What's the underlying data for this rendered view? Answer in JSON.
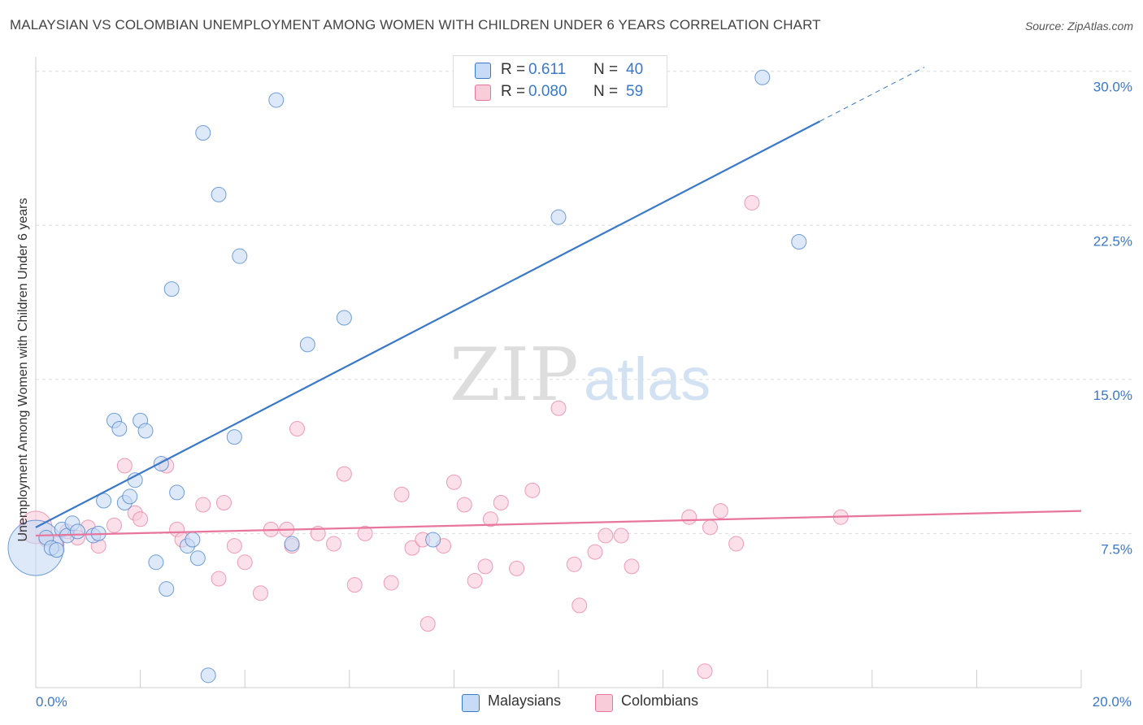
{
  "header": {
    "title": "MALAYSIAN VS COLOMBIAN UNEMPLOYMENT AMONG WOMEN WITH CHILDREN UNDER 6 YEARS CORRELATION CHART",
    "source": "Source: ZipAtlas.com"
  },
  "watermark": {
    "zip": "ZIP",
    "atlas": "atlas"
  },
  "legend": {
    "r_label": "R =",
    "n_label": "N =",
    "malaysians": {
      "r": "0.611",
      "n": "40"
    },
    "colombians": {
      "r": "0.080",
      "n": "59"
    }
  },
  "bottom_legend": {
    "malaysians": "Malaysians",
    "colombians": "Colombians"
  },
  "chart_data": {
    "type": "scatter",
    "title": "MALAYSIAN VS COLOMBIAN UNEMPLOYMENT AMONG WOMEN WITH CHILDREN UNDER 6 YEARS CORRELATION CHART",
    "xlabel": "",
    "ylabel": "Unemployment Among Women with Children Under 6 years",
    "xlim": [
      0,
      20
    ],
    "ylim": [
      0,
      30.7
    ],
    "x_tick_labels": [
      {
        "value": 0,
        "label": "0.0%"
      },
      {
        "value": 20,
        "label": "20.0%"
      }
    ],
    "y_tick_labels": [
      {
        "value": 7.5,
        "label": "7.5%"
      },
      {
        "value": 15,
        "label": "15.0%"
      },
      {
        "value": 22.5,
        "label": "22.5%"
      },
      {
        "value": 30,
        "label": "30.0%"
      }
    ],
    "grid": true,
    "legend_position": "top-center",
    "colors": {
      "malaysians": "#3a78c9",
      "colombians": "#e8769c",
      "malaysians_fill": "#c6dbf5",
      "colombians_fill": "#f9ccda"
    },
    "series": [
      {
        "name": "Malaysians",
        "trend": {
          "x0": 0,
          "y0": 7.8,
          "x1": 17,
          "y1": 30.2,
          "solid_until_x": 15
        },
        "points": [
          [
            0.0,
            6.8,
            34
          ],
          [
            0.2,
            7.3,
            9
          ],
          [
            0.3,
            6.8,
            9
          ],
          [
            0.4,
            6.7,
            9
          ],
          [
            0.5,
            7.7,
            9
          ],
          [
            0.6,
            7.4,
            9
          ],
          [
            0.7,
            8.0,
            9
          ],
          [
            0.8,
            7.6,
            9
          ],
          [
            1.1,
            7.4,
            9
          ],
          [
            1.2,
            7.5,
            9
          ],
          [
            1.3,
            9.1,
            9
          ],
          [
            1.5,
            13.0,
            9
          ],
          [
            1.6,
            12.6,
            9
          ],
          [
            1.7,
            9.0,
            9
          ],
          [
            1.8,
            9.3,
            9
          ],
          [
            1.9,
            10.1,
            9
          ],
          [
            2.0,
            13.0,
            9
          ],
          [
            2.1,
            12.5,
            9
          ],
          [
            2.3,
            6.1,
            9
          ],
          [
            2.4,
            10.9,
            9
          ],
          [
            2.5,
            4.8,
            9
          ],
          [
            2.6,
            19.4,
            9
          ],
          [
            2.7,
            9.5,
            9
          ],
          [
            2.9,
            6.9,
            9
          ],
          [
            3.0,
            7.2,
            9
          ],
          [
            3.1,
            6.3,
            9
          ],
          [
            3.2,
            27.0,
            9
          ],
          [
            3.3,
            0.6,
            9
          ],
          [
            3.5,
            24.0,
            9
          ],
          [
            3.8,
            12.2,
            9
          ],
          [
            3.9,
            21.0,
            9
          ],
          [
            4.6,
            28.6,
            9
          ],
          [
            4.9,
            7.0,
            9
          ],
          [
            5.2,
            16.7,
            9
          ],
          [
            5.9,
            18.0,
            9
          ],
          [
            7.6,
            7.2,
            9
          ],
          [
            10.0,
            22.9,
            9
          ],
          [
            13.9,
            29.7,
            9
          ],
          [
            14.6,
            21.7,
            9
          ]
        ]
      },
      {
        "name": "Colombians",
        "trend": {
          "x0": 0,
          "y0": 7.4,
          "x1": 20,
          "y1": 8.6,
          "solid_until_x": 20
        },
        "points": [
          [
            0.0,
            7.8,
            20
          ],
          [
            0.2,
            7.2,
            9
          ],
          [
            0.4,
            7.0,
            9
          ],
          [
            0.6,
            7.6,
            9
          ],
          [
            0.8,
            7.3,
            9
          ],
          [
            1.0,
            7.8,
            9
          ],
          [
            1.2,
            6.9,
            9
          ],
          [
            1.5,
            7.9,
            9
          ],
          [
            1.7,
            10.8,
            9
          ],
          [
            1.9,
            8.5,
            9
          ],
          [
            2.0,
            8.2,
            9
          ],
          [
            2.5,
            10.8,
            9
          ],
          [
            2.7,
            7.7,
            9
          ],
          [
            2.8,
            7.2,
            9
          ],
          [
            3.2,
            8.9,
            9
          ],
          [
            3.5,
            5.3,
            9
          ],
          [
            3.6,
            9.0,
            9
          ],
          [
            3.8,
            6.9,
            9
          ],
          [
            4.0,
            6.1,
            9
          ],
          [
            4.3,
            4.6,
            9
          ],
          [
            4.5,
            7.7,
            9
          ],
          [
            4.8,
            7.7,
            9
          ],
          [
            4.9,
            6.9,
            9
          ],
          [
            5.0,
            12.6,
            9
          ],
          [
            5.4,
            7.5,
            9
          ],
          [
            5.7,
            7.0,
            9
          ],
          [
            5.9,
            10.4,
            9
          ],
          [
            6.1,
            5.0,
            9
          ],
          [
            6.3,
            7.5,
            9
          ],
          [
            6.8,
            5.1,
            9
          ],
          [
            7.0,
            9.4,
            9
          ],
          [
            7.2,
            6.8,
            9
          ],
          [
            7.4,
            7.2,
            9
          ],
          [
            7.5,
            3.1,
            9
          ],
          [
            7.8,
            6.9,
            9
          ],
          [
            8.0,
            10.0,
            9
          ],
          [
            8.2,
            8.9,
            9
          ],
          [
            8.4,
            5.2,
            9
          ],
          [
            8.6,
            5.9,
            9
          ],
          [
            8.7,
            8.2,
            9
          ],
          [
            8.9,
            9.0,
            9
          ],
          [
            9.2,
            5.8,
            9
          ],
          [
            9.5,
            9.6,
            9
          ],
          [
            10.0,
            13.6,
            9
          ],
          [
            10.3,
            6.0,
            9
          ],
          [
            10.4,
            4.0,
            9
          ],
          [
            10.7,
            6.6,
            9
          ],
          [
            10.9,
            7.4,
            9
          ],
          [
            11.2,
            7.4,
            9
          ],
          [
            11.4,
            5.9,
            9
          ],
          [
            12.5,
            8.3,
            9
          ],
          [
            12.8,
            0.8,
            9
          ],
          [
            12.9,
            7.8,
            9
          ],
          [
            13.1,
            8.6,
            9
          ],
          [
            13.4,
            7.0,
            9
          ],
          [
            13.7,
            23.6,
            9
          ],
          [
            15.4,
            8.3,
            9
          ]
        ]
      }
    ]
  }
}
